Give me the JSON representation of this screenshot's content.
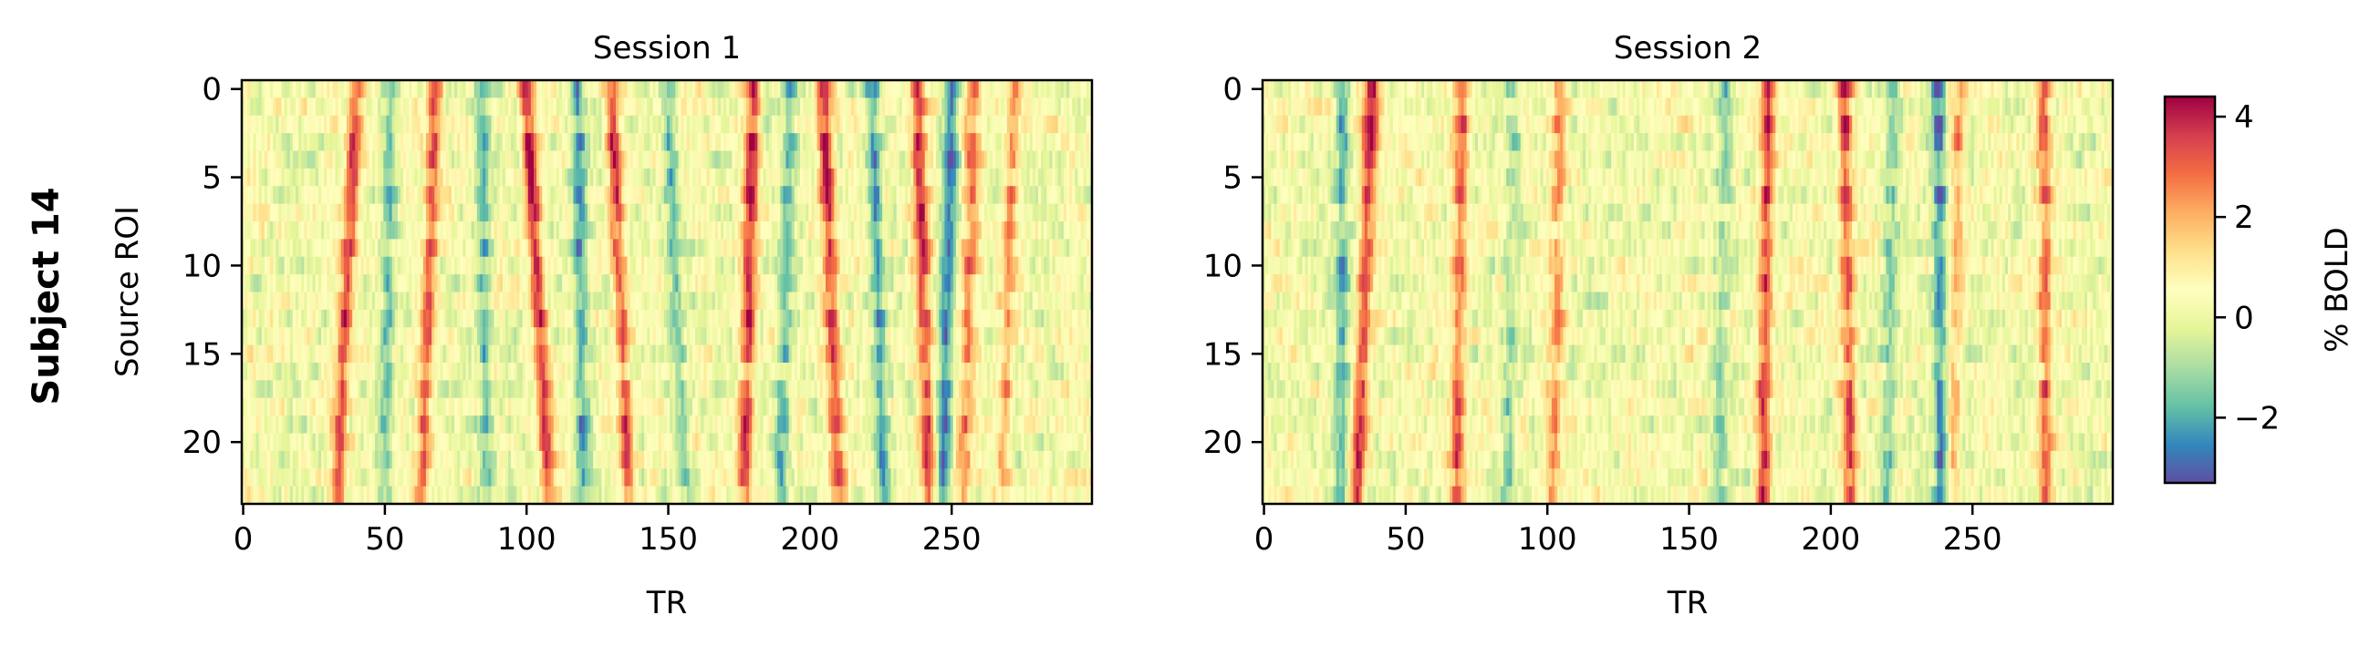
{
  "figure": {
    "row_label": "Subject 14"
  },
  "chart_data": [
    {
      "type": "heatmap",
      "title": "Session 1",
      "xlabel": "TR",
      "ylabel": "Source ROI",
      "x_range": [
        0,
        299
      ],
      "y_range": [
        0,
        23
      ],
      "y_inverted": true,
      "x_ticks": [
        0,
        50,
        100,
        150,
        200,
        250
      ],
      "y_ticks": [
        0,
        5,
        10,
        15,
        20
      ],
      "n_rois": 24,
      "n_trs": 300,
      "grid": false,
      "peaks": [
        {
          "tr_start": 40,
          "tr_end": 33,
          "amp": 3.0
        },
        {
          "tr_start": 68,
          "tr_end": 63,
          "amp": 2.6
        },
        {
          "tr_start": 100,
          "tr_end": 108,
          "amp": 3.3
        },
        {
          "tr_start": 130,
          "tr_end": 136,
          "amp": 2.7
        },
        {
          "tr_start": 180,
          "tr_end": 177,
          "amp": 3.4
        },
        {
          "tr_start": 205,
          "tr_end": 210,
          "amp": 3.1
        },
        {
          "tr_start": 238,
          "tr_end": 242,
          "amp": 3.0
        },
        {
          "tr_start": 258,
          "tr_end": 254,
          "amp": 2.3
        },
        {
          "tr_start": 272,
          "tr_end": 268,
          "amp": 1.8
        }
      ],
      "troughs": [
        {
          "tr_start": 52,
          "tr_end": 50,
          "amp": -1.6
        },
        {
          "tr_start": 84,
          "tr_end": 86,
          "amp": -1.8
        },
        {
          "tr_start": 118,
          "tr_end": 120,
          "amp": -2.2
        },
        {
          "tr_start": 150,
          "tr_end": 156,
          "amp": -1.7
        },
        {
          "tr_start": 193,
          "tr_end": 190,
          "amp": -1.8
        },
        {
          "tr_start": 222,
          "tr_end": 226,
          "amp": -2.1
        },
        {
          "tr_start": 250,
          "tr_end": 247,
          "amp": -2.6
        }
      ]
    },
    {
      "type": "heatmap",
      "title": "Session 2",
      "xlabel": "TR",
      "ylabel": "",
      "x_range": [
        0,
        299
      ],
      "y_range": [
        0,
        23
      ],
      "y_inverted": true,
      "x_ticks": [
        0,
        50,
        100,
        150,
        200,
        250
      ],
      "y_ticks": [
        0,
        5,
        10,
        15,
        20
      ],
      "n_rois": 24,
      "n_trs": 300,
      "grid": false,
      "peaks": [
        {
          "tr_start": 38,
          "tr_end": 33,
          "amp": 3.5
        },
        {
          "tr_start": 70,
          "tr_end": 68,
          "amp": 2.6
        },
        {
          "tr_start": 105,
          "tr_end": 102,
          "amp": 2.0
        },
        {
          "tr_start": 178,
          "tr_end": 176,
          "amp": 3.1
        },
        {
          "tr_start": 205,
          "tr_end": 207,
          "amp": 2.9
        },
        {
          "tr_start": 245,
          "tr_end": 243,
          "amp": 1.6
        },
        {
          "tr_start": 275,
          "tr_end": 276,
          "amp": 2.6
        }
      ],
      "troughs": [
        {
          "tr_start": 28,
          "tr_end": 27,
          "amp": -2.0
        },
        {
          "tr_start": 88,
          "tr_end": 86,
          "amp": -1.4
        },
        {
          "tr_start": 163,
          "tr_end": 160,
          "amp": -1.5
        },
        {
          "tr_start": 222,
          "tr_end": 220,
          "amp": -1.7
        },
        {
          "tr_start": 238,
          "tr_end": 239,
          "amp": -2.9
        }
      ]
    }
  ],
  "colorbar": {
    "label": "% BOLD",
    "colormap": "Spectral_r",
    "vmin": -3.3,
    "vmax": 4.4,
    "ticks": [
      4,
      2,
      0,
      -2
    ],
    "tick_labels": [
      "4",
      "2",
      "0",
      "−2"
    ],
    "stops": [
      "#5e4fa2",
      "#3288bd",
      "#66c2a5",
      "#abdda4",
      "#e6f598",
      "#ffffbf",
      "#fee08b",
      "#fdae61",
      "#f46d43",
      "#d53e4f",
      "#9e0142"
    ]
  }
}
